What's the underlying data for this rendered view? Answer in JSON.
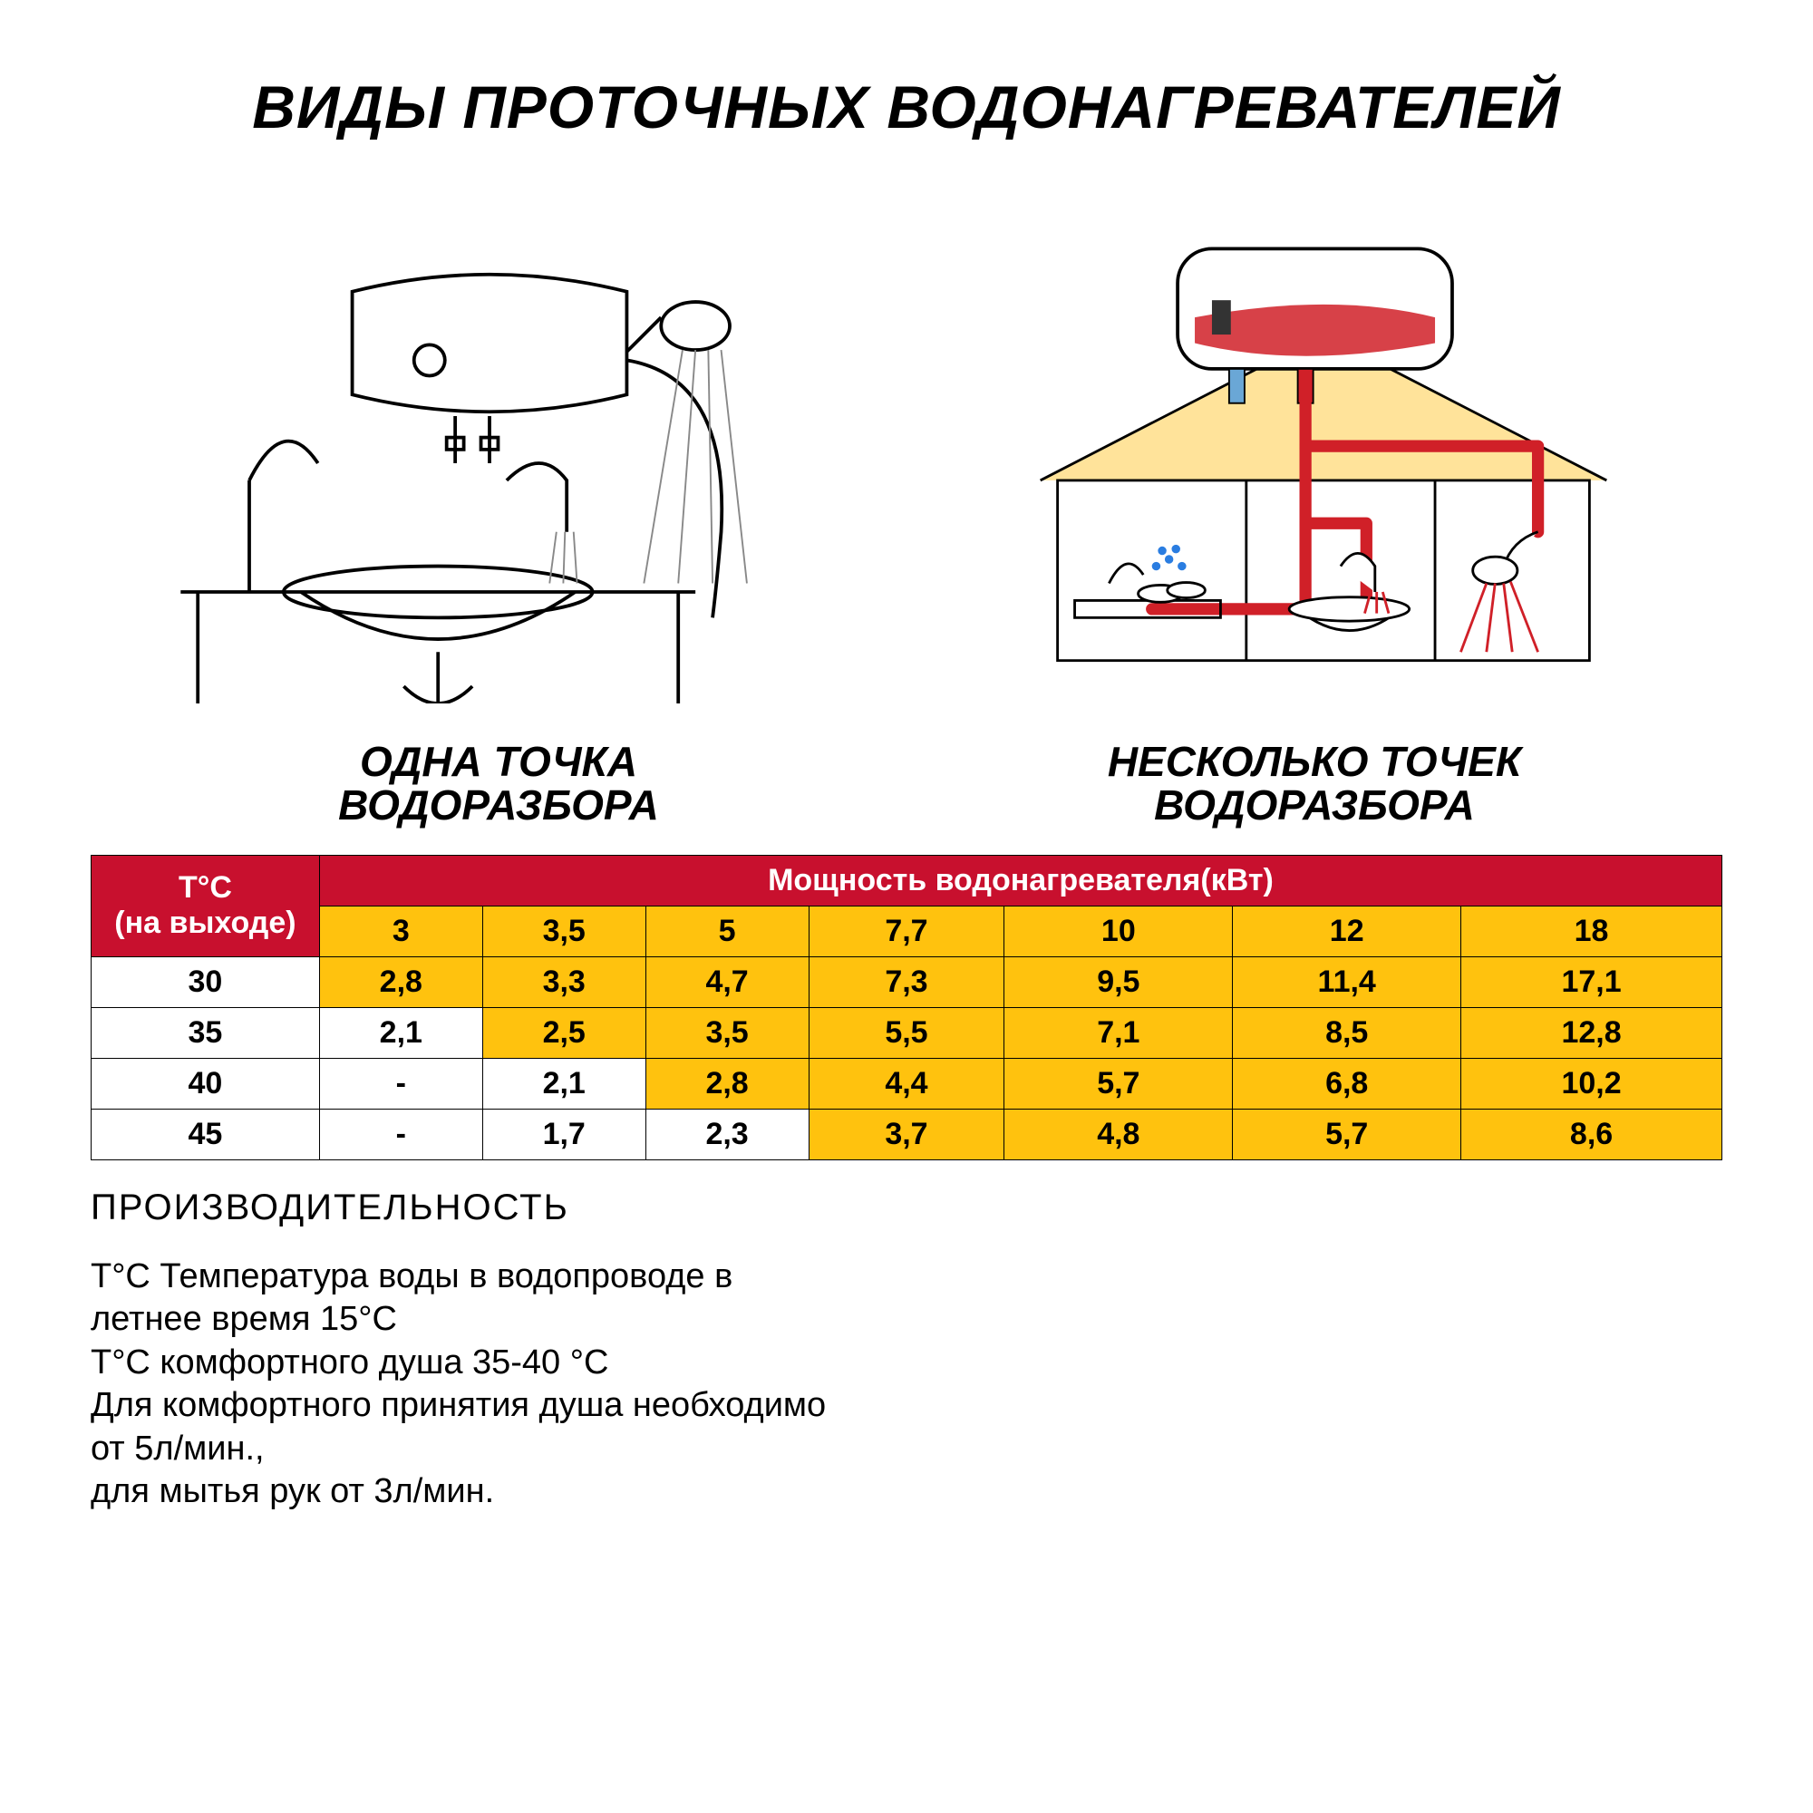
{
  "title": "ВИДЫ ПРОТОЧНЫХ ВОДОНАГРЕВАТЕЛЕЙ",
  "subtitles": {
    "left": "ОДНА ТОЧКА\nВОДОРАЗБОРА",
    "right": "НЕСКОЛЬКО ТОЧЕК\nВОДОРАЗБОРА"
  },
  "colors": {
    "header_red": "#c8102e",
    "header_yellow": "#ffc20e",
    "cell_yellow": "#ffc20e",
    "cell_white": "#ffffff",
    "text_black": "#000000",
    "text_white": "#ffffff",
    "pipe_red": "#d02028",
    "house_fill": "#ffe39a",
    "water_gray": "#888888"
  },
  "table": {
    "row_header_label": "T°C\n(на выходе)",
    "col_group_label": "Мощность водонагревателя(кВт)",
    "power_columns": [
      "3",
      "3,5",
      "5",
      "7,7",
      "10",
      "12",
      "18"
    ],
    "temp_rows": [
      "30",
      "35",
      "40",
      "45"
    ],
    "cells": [
      [
        {
          "v": "2,8",
          "hl": true
        },
        {
          "v": "3,3",
          "hl": true
        },
        {
          "v": "4,7",
          "hl": true
        },
        {
          "v": "7,3",
          "hl": true
        },
        {
          "v": "9,5",
          "hl": true
        },
        {
          "v": "11,4",
          "hl": true
        },
        {
          "v": "17,1",
          "hl": true
        }
      ],
      [
        {
          "v": "2,1",
          "hl": false
        },
        {
          "v": "2,5",
          "hl": true
        },
        {
          "v": "3,5",
          "hl": true
        },
        {
          "v": "5,5",
          "hl": true
        },
        {
          "v": "7,1",
          "hl": true
        },
        {
          "v": "8,5",
          "hl": true
        },
        {
          "v": "12,8",
          "hl": true
        }
      ],
      [
        {
          "v": "-",
          "hl": false
        },
        {
          "v": "2,1",
          "hl": false
        },
        {
          "v": "2,8",
          "hl": true
        },
        {
          "v": "4,4",
          "hl": true
        },
        {
          "v": "5,7",
          "hl": true
        },
        {
          "v": "6,8",
          "hl": true
        },
        {
          "v": "10,2",
          "hl": true
        }
      ],
      [
        {
          "v": "-",
          "hl": false
        },
        {
          "v": "1,7",
          "hl": false
        },
        {
          "v": "2,3",
          "hl": false
        },
        {
          "v": "3,7",
          "hl": true
        },
        {
          "v": "4,8",
          "hl": true
        },
        {
          "v": "5,7",
          "hl": true
        },
        {
          "v": "8,6",
          "hl": true
        }
      ]
    ],
    "col_widths_pct": [
      14,
      10,
      10,
      10,
      12,
      14,
      14,
      16
    ]
  },
  "performance": {
    "title": "ПРОИЗВОДИТЕЛЬНОСТЬ",
    "lines": [
      "T°C Температура воды в водопроводе в",
      "летнее время 15°C",
      "T°C комфортного душа 35-40 °C",
      "Для комфортного принятия душа необходимо",
      "от 5л/мин.,",
      "для мытья рук от 3л/мин."
    ]
  },
  "diagram_left": {
    "description": "single-point heater over sink with shower head",
    "stroke": "#000000"
  },
  "diagram_right": {
    "description": "multi-point heater feeding house with three outlets via red pipes"
  }
}
